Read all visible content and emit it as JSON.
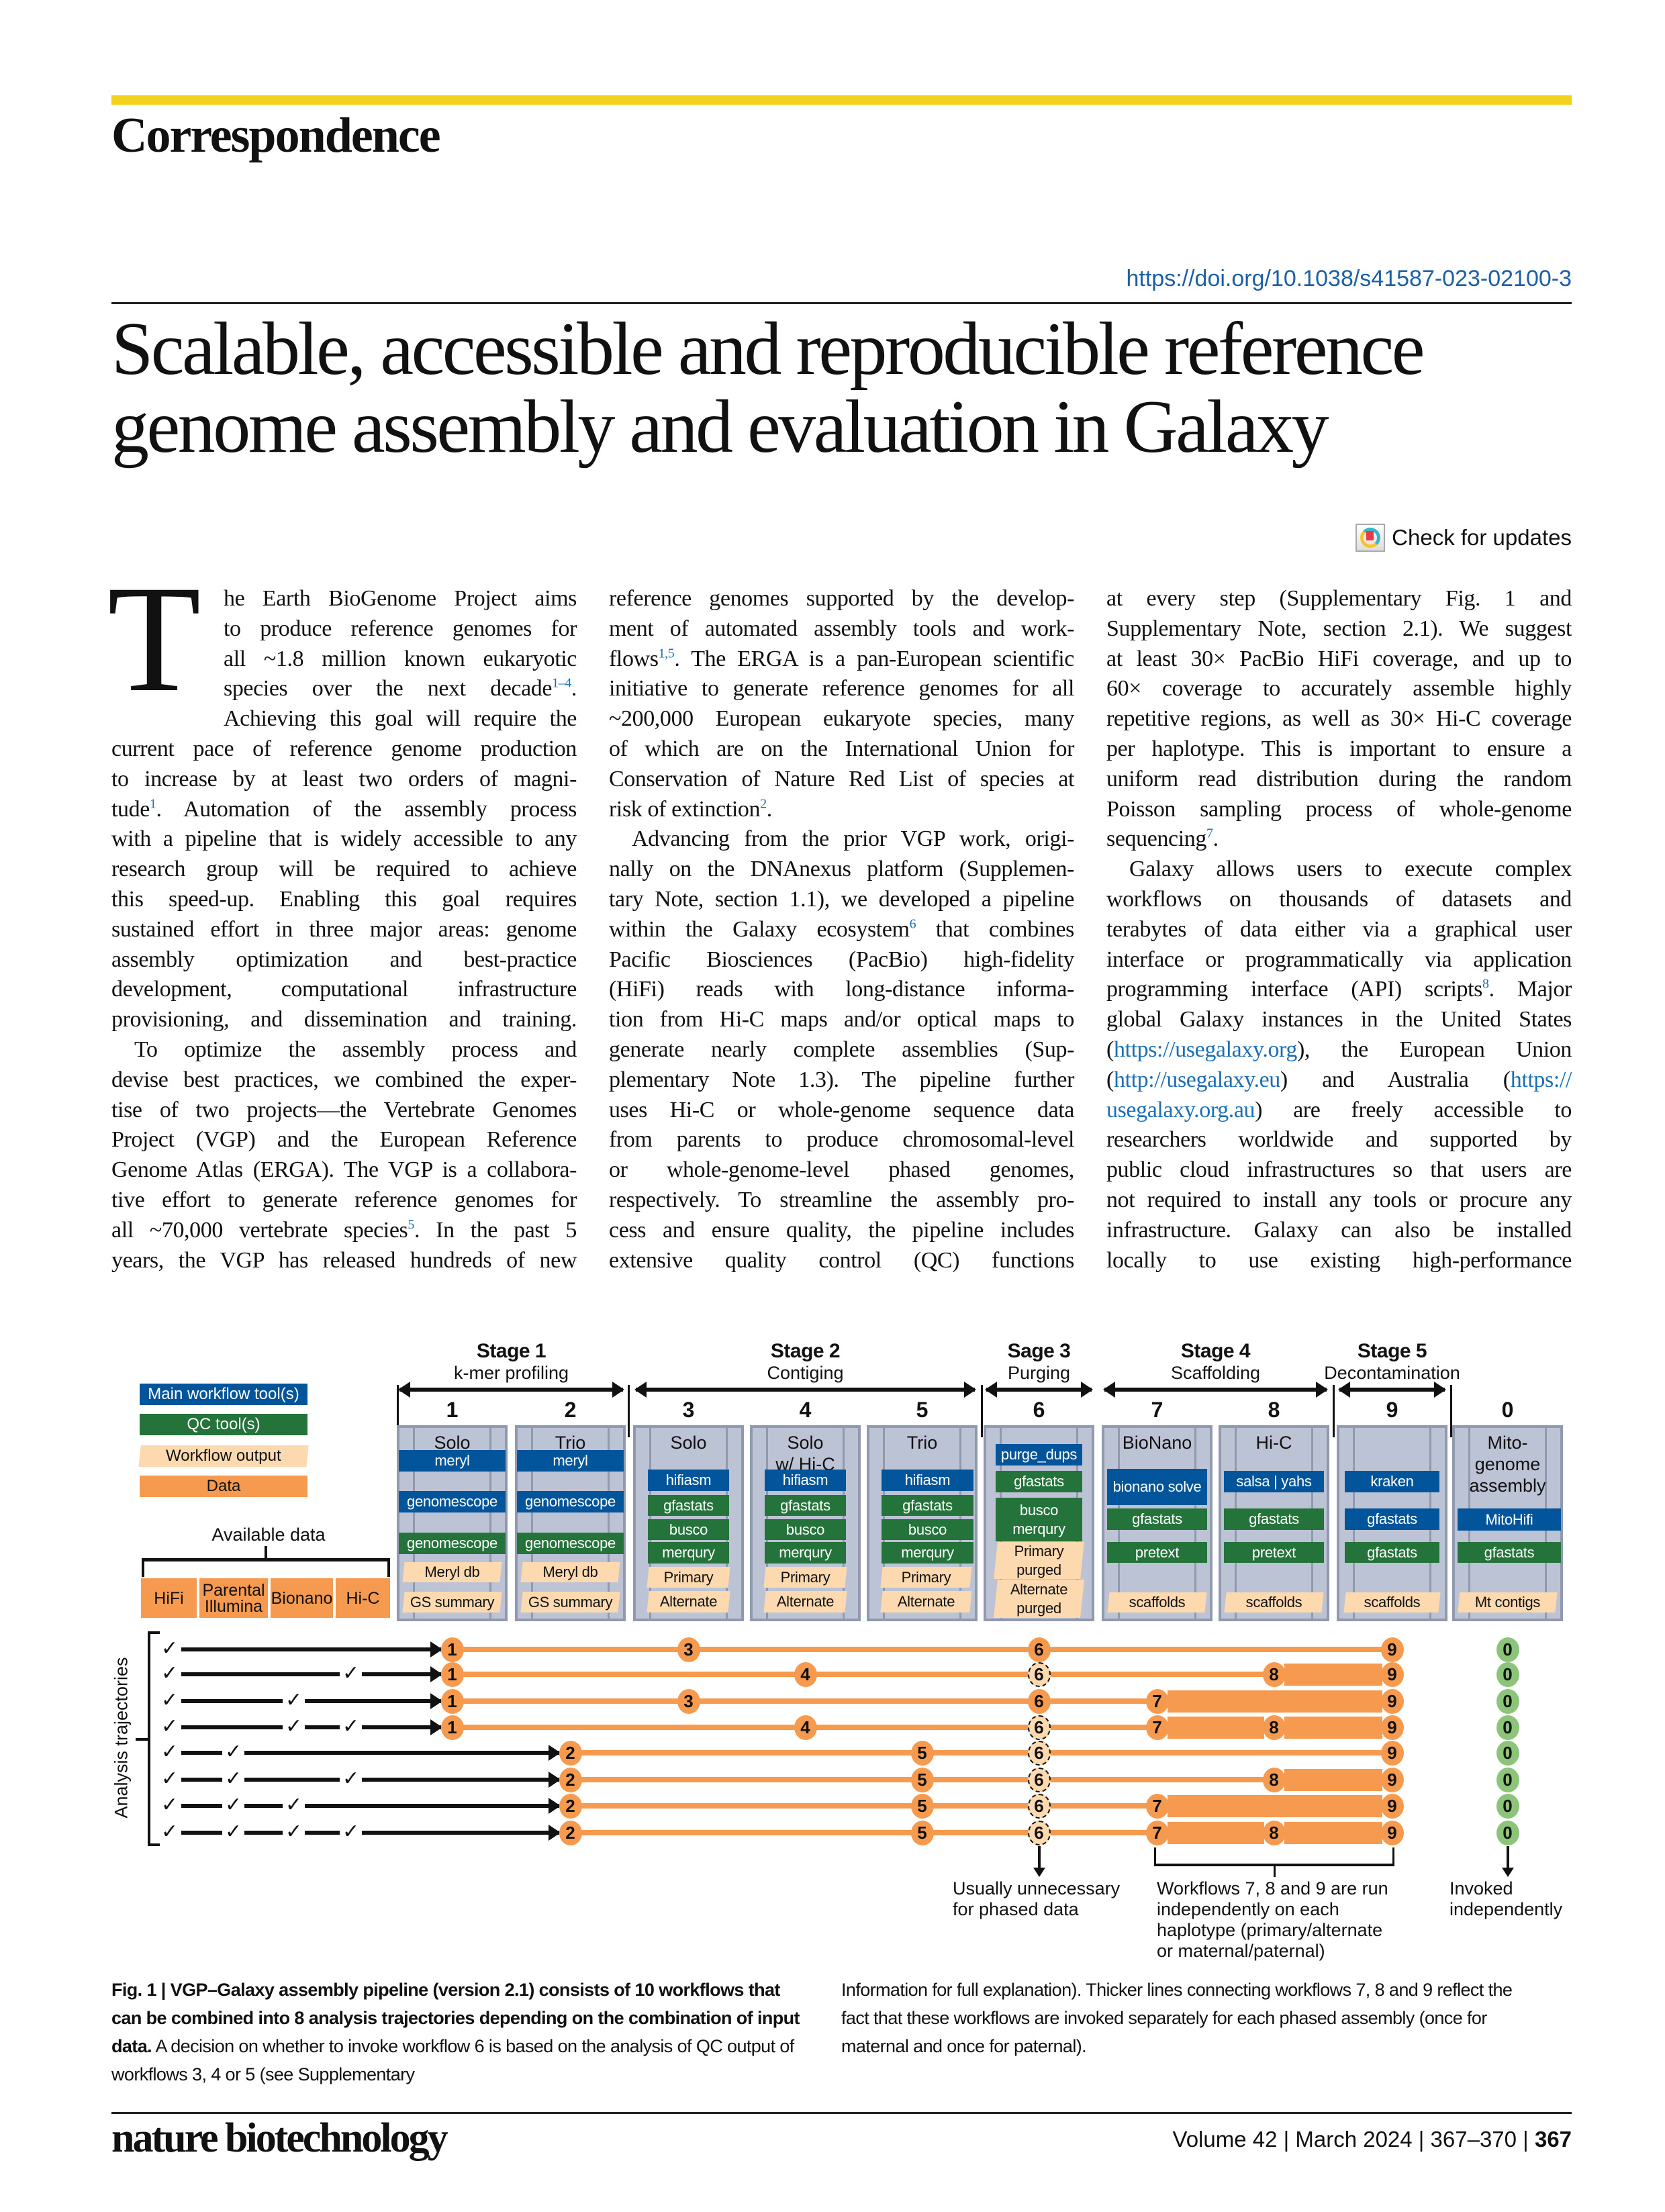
{
  "header": {
    "section": "Correspondence",
    "doi": "https://doi.org/10.1038/s41587-023-02100-3",
    "title_lines": [
      "Scalable, accessible and reproducible reference",
      "genome assembly and evaluation in Galaxy"
    ],
    "check_updates": "Check for updates"
  },
  "body": {
    "drop_cap": "T",
    "columns": [
      [
        {
          "s": [
            "he Earth BioGenome Project aims"
          ],
          "dc": true
        },
        {
          "s": [
            "to produce reference genomes for"
          ],
          "dc": true
        },
        {
          "s": [
            "all ~1.8 million known eukaryotic"
          ],
          "dc": true
        },
        {
          "s": [
            "species over the next decade",
            {
              "sup": "1–4"
            },
            "."
          ],
          "dc": true
        },
        {
          "s": [
            "Achieving this goal will require the"
          ],
          "dc": true
        },
        {
          "s": [
            "current pace of reference genome production"
          ]
        },
        {
          "s": [
            "to increase by at least two orders of magni-"
          ]
        },
        {
          "s": [
            "tude",
            {
              "sup": "1"
            },
            ". Automation of the assembly process"
          ]
        },
        {
          "s": [
            "with a pipeline that is widely accessible to any"
          ]
        },
        {
          "s": [
            "research group will be required to achieve"
          ]
        },
        {
          "s": [
            "this speed-up. Enabling this goal requires"
          ]
        },
        {
          "s": [
            "sustained effort in three major areas: genome"
          ]
        },
        {
          "s": [
            "assembly optimization and best-practice"
          ]
        },
        {
          "s": [
            "development, computational infrastructure"
          ]
        },
        {
          "s": [
            "provisioning, and dissemination and training."
          ]
        },
        {
          "s": [
            "To optimize the assembly process and"
          ],
          "ind": true
        },
        {
          "s": [
            "devise best practices, we combined the exper-"
          ]
        },
        {
          "s": [
            "tise of two projects—the Vertebrate Genomes"
          ]
        },
        {
          "s": [
            "Project (VGP) and the European Reference"
          ]
        },
        {
          "s": [
            "Genome Atlas (ERGA). The VGP is a collabora-"
          ]
        },
        {
          "s": [
            "tive effort to generate reference genomes for"
          ]
        },
        {
          "s": [
            "all ~70,000 vertebrate species",
            {
              "sup": "5"
            },
            ". In the past 5"
          ]
        },
        {
          "s": [
            "years, the VGP has released hundreds of new"
          ]
        }
      ],
      [
        {
          "s": [
            "reference genomes supported by the develop-"
          ]
        },
        {
          "s": [
            "ment of automated assembly tools and work-"
          ]
        },
        {
          "s": [
            "flows",
            {
              "sup": "1,5"
            },
            ". The ERGA is a pan-European scientific"
          ]
        },
        {
          "s": [
            "initiative to generate reference genomes for all"
          ]
        },
        {
          "s": [
            "~200,000 European eukaryote species, many"
          ]
        },
        {
          "s": [
            "of which are on the International Union for"
          ]
        },
        {
          "s": [
            "Conservation of Nature Red List of species at"
          ]
        },
        {
          "s": [
            "risk of extinction",
            {
              "sup": "2"
            },
            "."
          ],
          "end": true
        },
        {
          "s": [
            "Advancing from the prior VGP work, origi-"
          ],
          "ind": true
        },
        {
          "s": [
            "nally on the DNAnexus platform (Supplemen-"
          ]
        },
        {
          "s": [
            "tary Note, section 1.1), we developed a pipeline"
          ]
        },
        {
          "s": [
            "within the Galaxy ecosystem",
            {
              "sup": "6"
            },
            " that combines"
          ]
        },
        {
          "s": [
            "Pacific Biosciences (PacBio) high-fidelity"
          ]
        },
        {
          "s": [
            "(HiFi) reads with long-distance informa-"
          ]
        },
        {
          "s": [
            "tion from Hi-C maps and/or optical maps to"
          ]
        },
        {
          "s": [
            "generate nearly complete assemblies (Sup-"
          ]
        },
        {
          "s": [
            "plementary Note 1.3). The pipeline further"
          ]
        },
        {
          "s": [
            "uses Hi-C or whole-genome sequence data"
          ]
        },
        {
          "s": [
            "from parents to produce chromosomal-level"
          ]
        },
        {
          "s": [
            "or whole-genome-level phased genomes,"
          ]
        },
        {
          "s": [
            "respectively. To streamline the assembly pro-"
          ]
        },
        {
          "s": [
            "cess and ensure quality, the pipeline includes"
          ]
        },
        {
          "s": [
            "extensive quality control (QC) functions"
          ]
        }
      ],
      [
        {
          "s": [
            "at every step (Supplementary Fig. 1 and"
          ]
        },
        {
          "s": [
            "Supplementary Note, section 2.1). We suggest"
          ]
        },
        {
          "s": [
            "at least 30× PacBio HiFi coverage, and up to"
          ]
        },
        {
          "s": [
            "60× coverage to accurately assemble highly"
          ]
        },
        {
          "s": [
            "repetitive regions, as well as 30× Hi-C coverage"
          ]
        },
        {
          "s": [
            "per haplotype. This is important to ensure a"
          ]
        },
        {
          "s": [
            "uniform read distribution during the random"
          ]
        },
        {
          "s": [
            "Poisson sampling process of whole-genome"
          ]
        },
        {
          "s": [
            "sequencing",
            {
              "sup": "7"
            },
            "."
          ],
          "end": true
        },
        {
          "s": [
            "Galaxy allows users to execute complex"
          ],
          "ind": true
        },
        {
          "s": [
            "workflows on thousands of datasets and"
          ]
        },
        {
          "s": [
            "terabytes of data either via a graphical user"
          ]
        },
        {
          "s": [
            "interface or programmatically via application"
          ]
        },
        {
          "s": [
            "programming interface (API) scripts",
            {
              "sup": "8"
            },
            ". Major"
          ]
        },
        {
          "s": [
            "global Galaxy instances in the United States"
          ]
        },
        {
          "s": [
            "(",
            {
              "link": "https://usegalaxy.org"
            },
            "), the European Union"
          ]
        },
        {
          "s": [
            "(",
            {
              "link": "http://usegalaxy.eu"
            },
            ") and Australia (",
            {
              "link": "https://"
            }
          ]
        },
        {
          "s": [
            {
              "link": "usegalaxy.org.au"
            },
            ") are freely accessible to"
          ]
        },
        {
          "s": [
            "researchers worldwide and supported by"
          ]
        },
        {
          "s": [
            "public cloud infrastructures so that users are"
          ]
        },
        {
          "s": [
            "not required to install any tools or procure any"
          ]
        },
        {
          "s": [
            "infrastructure. Galaxy can also be installed"
          ]
        },
        {
          "s": [
            "locally to use existing high-performance"
          ]
        }
      ]
    ]
  },
  "figure": {
    "colors": {
      "main": "#02559a",
      "qc": "#23733a",
      "output": "#fdd9b0",
      "data": "#f59a4f",
      "mito_node": "#8cc47a"
    },
    "legend": [
      {
        "label": "Main workflow tool(s)",
        "type": "main"
      },
      {
        "label": "QC tool(s)",
        "type": "qc"
      },
      {
        "label": "Workflow output",
        "type": "output"
      },
      {
        "label": "Data",
        "type": "data"
      }
    ],
    "available_data": {
      "label": "Available data",
      "items": [
        "HiFi",
        "Parental Illumina",
        "Bionano",
        "Hi-C"
      ]
    },
    "stages": [
      {
        "title": "Stage 1",
        "subtitle": "k-mer profiling",
        "workflows": [
          "1",
          "2"
        ]
      },
      {
        "title": "Stage 2",
        "subtitle": "Contiging",
        "workflows": [
          "3",
          "4",
          "5"
        ]
      },
      {
        "title": "Sage 3",
        "subtitle": "Purging",
        "workflows": [
          "6"
        ]
      },
      {
        "title": "Stage 4",
        "subtitle": "Scaffolding",
        "workflows": [
          "7",
          "8"
        ]
      },
      {
        "title": "Stage 5",
        "subtitle": "Decontamination",
        "workflows": [
          "9"
        ]
      }
    ],
    "columns": [
      {
        "number": "1",
        "label": [
          "Solo"
        ],
        "items": [
          {
            "t": "meryl",
            "type": "main"
          },
          {
            "t": "genomescope",
            "type": "main"
          },
          {
            "t": "genomescope",
            "type": "qc"
          },
          {
            "t": "Meryl db",
            "type": "output"
          },
          {
            "t": "GS summary",
            "type": "output"
          }
        ]
      },
      {
        "number": "2",
        "label": [
          "Trio"
        ],
        "items": [
          {
            "t": "meryl",
            "type": "main"
          },
          {
            "t": "genomescope",
            "type": "main"
          },
          {
            "t": "genomescope",
            "type": "qc"
          },
          {
            "t": "Meryl db",
            "type": "output"
          },
          {
            "t": "GS summary",
            "type": "output"
          }
        ]
      },
      {
        "number": "3",
        "label": [
          "Solo"
        ],
        "items": [
          {
            "t": "hifiasm",
            "type": "main"
          },
          {
            "t": "gfastats",
            "type": "qc"
          },
          {
            "t": "busco",
            "type": "qc"
          },
          {
            "t": "merqury",
            "type": "qc"
          },
          {
            "t": "Primary",
            "type": "output"
          },
          {
            "t": "Alternate",
            "type": "output"
          }
        ]
      },
      {
        "number": "4",
        "label": [
          "Solo",
          "w/ Hi-C"
        ],
        "items": [
          {
            "t": "hifiasm",
            "type": "main"
          },
          {
            "t": "gfastats",
            "type": "qc"
          },
          {
            "t": "busco",
            "type": "qc"
          },
          {
            "t": "merqury",
            "type": "qc"
          },
          {
            "t": "Primary",
            "type": "output"
          },
          {
            "t": "Alternate",
            "type": "output"
          }
        ]
      },
      {
        "number": "5",
        "label": [
          "Trio"
        ],
        "items": [
          {
            "t": "hifiasm",
            "type": "main"
          },
          {
            "t": "gfastats",
            "type": "qc"
          },
          {
            "t": "busco",
            "type": "qc"
          },
          {
            "t": "merqury",
            "type": "qc"
          },
          {
            "t": "Primary",
            "type": "output"
          },
          {
            "t": "Alternate",
            "type": "output"
          }
        ]
      },
      {
        "number": "6",
        "label": [],
        "items": [
          {
            "t": "purge_dups",
            "type": "main"
          },
          {
            "t": "gfastats",
            "type": "qc"
          },
          {
            "t": "busco merqury",
            "type": "qc"
          },
          {
            "t": "Primary purged",
            "type": "output"
          },
          {
            "t": "Alternate purged",
            "type": "output"
          }
        ]
      },
      {
        "number": "7",
        "label": [
          "BioNano"
        ],
        "items": [
          {
            "t": "bionano solve",
            "type": "main"
          },
          {
            "t": "gfastats",
            "type": "qc"
          },
          {
            "t": "pretext",
            "type": "qc"
          },
          {
            "t": "scaffolds",
            "type": "output"
          }
        ]
      },
      {
        "number": "8",
        "label": [
          "Hi-C"
        ],
        "items": [
          {
            "t": "salsa | yahs",
            "type": "main"
          },
          {
            "t": "gfastats",
            "type": "qc"
          },
          {
            "t": "pretext",
            "type": "qc"
          },
          {
            "t": "scaffolds",
            "type": "output"
          }
        ]
      },
      {
        "number": "9",
        "label": [],
        "items": [
          {
            "t": "kraken",
            "type": "main"
          },
          {
            "t": "gfastats",
            "type": "main"
          },
          {
            "t": "gfastats",
            "type": "qc"
          },
          {
            "t": "scaffolds",
            "type": "output"
          }
        ]
      },
      {
        "number": "0",
        "label": [
          "Mito-",
          "genome",
          "assembly"
        ],
        "items": [
          {
            "t": "MitoHifi",
            "type": "main"
          },
          {
            "t": "gfastats",
            "type": "qc"
          },
          {
            "t": "Mt contigs",
            "type": "output"
          }
        ]
      }
    ],
    "trajectories_label": "Analysis trajectories",
    "trajectories": [
      {
        "checks": [
          true,
          false,
          false,
          false
        ],
        "nodes": [
          "1",
          "3",
          "6",
          "9",
          "0"
        ],
        "optional": [],
        "thick": []
      },
      {
        "checks": [
          true,
          false,
          false,
          true
        ],
        "nodes": [
          "1",
          "4",
          "6",
          "8",
          "9",
          "0"
        ],
        "optional": [
          "6"
        ],
        "thick": [
          [
            "8",
            "9"
          ]
        ]
      },
      {
        "checks": [
          true,
          false,
          true,
          false
        ],
        "nodes": [
          "1",
          "3",
          "6",
          "7",
          "9",
          "0"
        ],
        "optional": [],
        "thick": [
          [
            "7",
            "9"
          ]
        ]
      },
      {
        "checks": [
          true,
          false,
          true,
          true
        ],
        "nodes": [
          "1",
          "4",
          "6",
          "7",
          "8",
          "9",
          "0"
        ],
        "optional": [
          "6"
        ],
        "thick": [
          [
            "7",
            "8"
          ],
          [
            "8",
            "9"
          ]
        ]
      },
      {
        "checks": [
          true,
          true,
          false,
          false
        ],
        "nodes": [
          "2",
          "5",
          "6",
          "9",
          "0"
        ],
        "optional": [
          "6"
        ],
        "thick": []
      },
      {
        "checks": [
          true,
          true,
          false,
          true
        ],
        "nodes": [
          "2",
          "5",
          "6",
          "8",
          "9",
          "0"
        ],
        "optional": [
          "6"
        ],
        "thick": [
          [
            "8",
            "9"
          ]
        ]
      },
      {
        "checks": [
          true,
          true,
          true,
          false
        ],
        "nodes": [
          "2",
          "5",
          "6",
          "7",
          "9",
          "0"
        ],
        "optional": [
          "6"
        ],
        "thick": [
          [
            "7",
            "9"
          ]
        ]
      },
      {
        "checks": [
          true,
          true,
          true,
          true
        ],
        "nodes": [
          "2",
          "5",
          "6",
          "7",
          "8",
          "9",
          "0"
        ],
        "optional": [
          "6"
        ],
        "thick": [
          [
            "7",
            "8"
          ],
          [
            "8",
            "9"
          ]
        ]
      }
    ],
    "notes": {
      "purging": [
        "Usually unnecessary",
        "for phased data"
      ],
      "scaffolding": [
        "Workflows 7, 8 and 9 are run",
        "independently on each",
        "haplotype (primary/alternate",
        "or maternal/paternal)"
      ],
      "mito": [
        "Invoked",
        "independently"
      ]
    }
  },
  "caption": {
    "bold": "Fig. 1 | VGP–Galaxy assembly pipeline (version 2.1) consists of 10 workflows that can be combined into 8 analysis trajectories depending on the combination of input data.",
    "text1": " A decision on whether to invoke workflow 6 is based on the analysis of QC output of workflows 3, 4 or 5 (see Supplementary",
    "text2": "Information for full explanation). Thicker lines connecting workflows 7, 8 and 9 reflect the fact that these workflows are invoked separately for each phased assembly (once for maternal and once for paternal)."
  },
  "footer": {
    "journal": "nature biotechnology",
    "issue": "Volume 42 | March 2024 | 367–370 | ",
    "page": "367"
  }
}
